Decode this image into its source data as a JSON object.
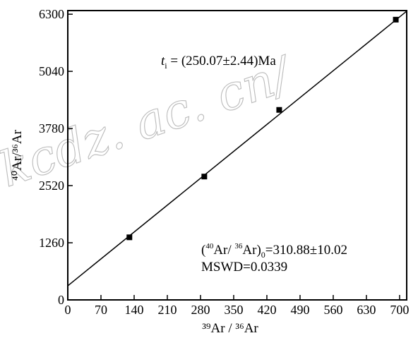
{
  "chart_data": {
    "type": "scatter",
    "title": "",
    "xlabel": "³⁹Ar / ³⁶Ar",
    "ylabel": "⁴⁰Ar/³⁶Ar",
    "xlim": [
      0,
      715
    ],
    "ylim": [
      0,
      6380
    ],
    "xticks": [
      0,
      70,
      140,
      210,
      280,
      350,
      420,
      490,
      560,
      630,
      700
    ],
    "yticks": [
      0,
      1260,
      2520,
      3780,
      5040,
      6300
    ],
    "grid": false,
    "legend": "none",
    "points": [
      {
        "x": 130,
        "y": 1380
      },
      {
        "x": 288,
        "y": 2720
      },
      {
        "x": 446,
        "y": 4190
      },
      {
        "x": 692,
        "y": 6180
      }
    ],
    "fit_line": {
      "intercept": 310.88,
      "slope": 8.47
    },
    "annotations": {
      "age_italic": "t",
      "age_sub": "i",
      "age_text": " = (250.07±2.44)Ma",
      "initial_prefix": "(",
      "initial_sup1": "40",
      "initial_mid": "Ar/ ",
      "initial_sup2": "36",
      "initial_ar": "Ar)",
      "initial_sub": "0",
      "initial_value": "=310.88±10.02",
      "mswd": "MSWD=0.0339"
    },
    "watermark": "kcdz. ac. cn/"
  }
}
